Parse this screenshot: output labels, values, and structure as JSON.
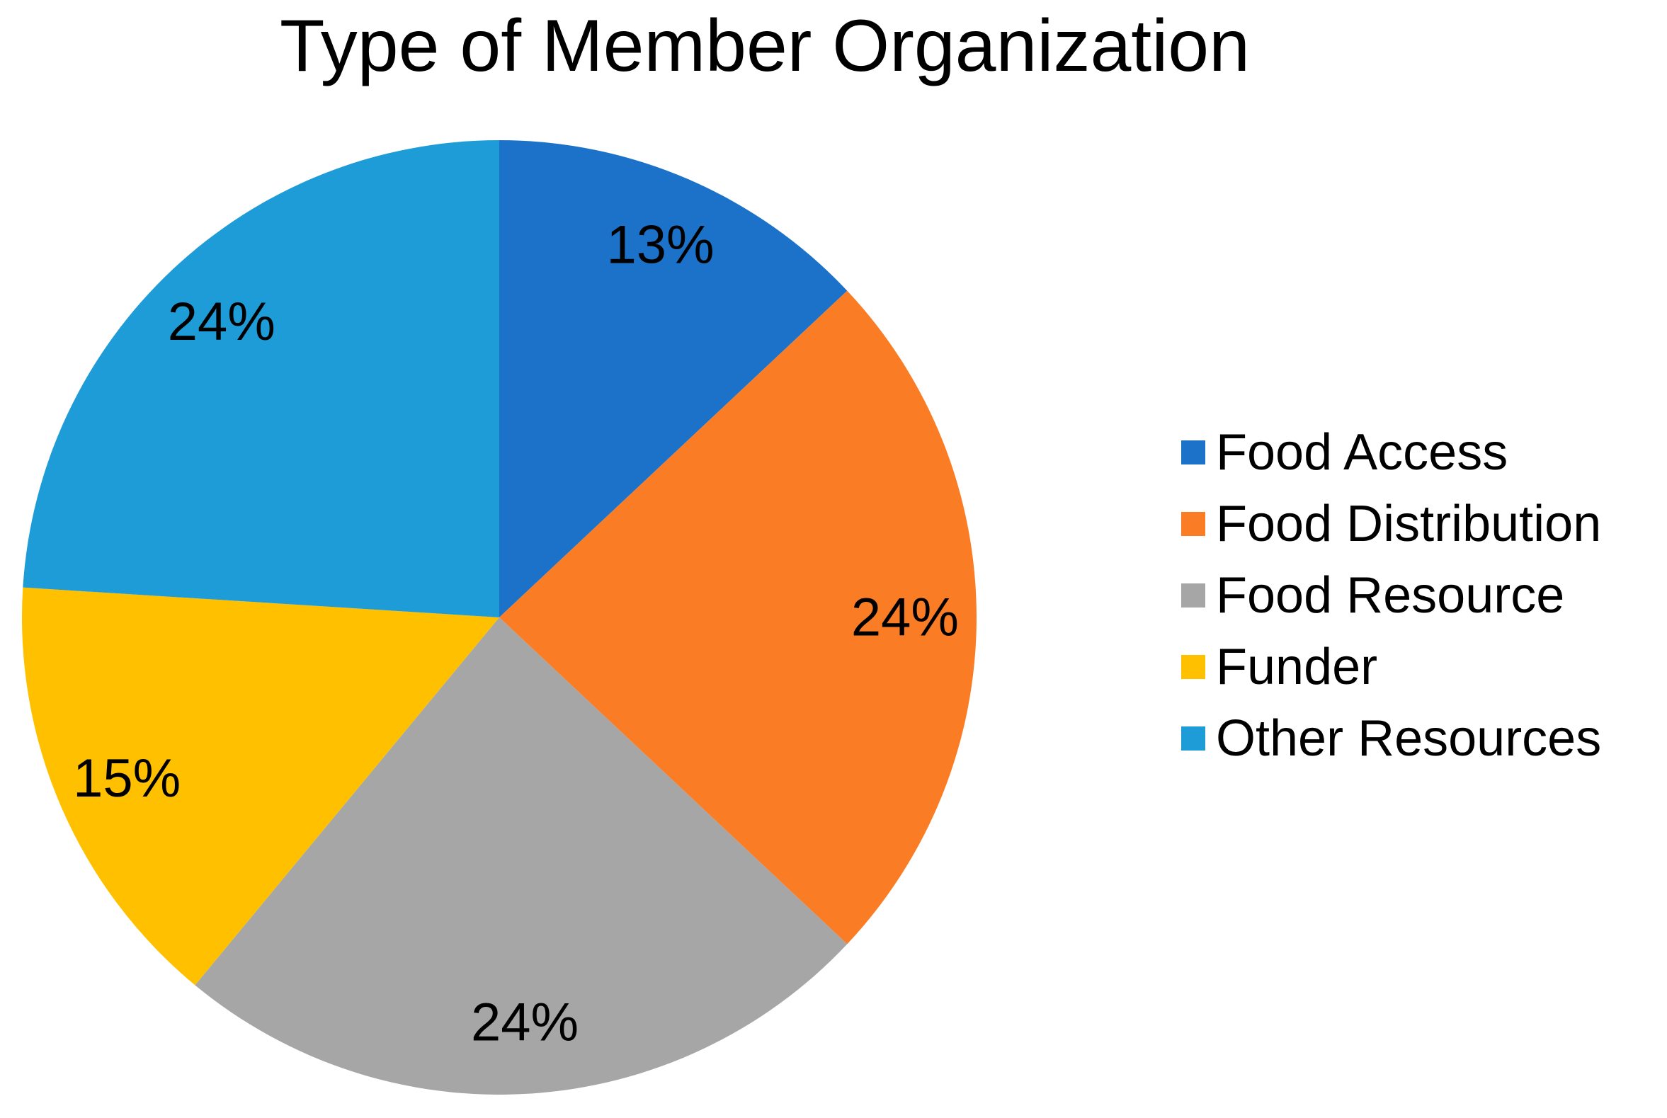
{
  "chart_data": {
    "type": "pie",
    "title": "Type of Member Organization",
    "start_angle_deg": 0,
    "direction": "clockwise",
    "label_format": "percent",
    "legend_position": "right",
    "background_color": "#ffffff",
    "text_color": "#000000",
    "slices": [
      {
        "label": "Food Access",
        "value": 13,
        "display": "13%",
        "color": "#1B72C8"
      },
      {
        "label": "Food Distribution",
        "value": 24,
        "display": "24%",
        "color": "#FA7C25"
      },
      {
        "label": "Food Resource",
        "value": 24,
        "display": "24%",
        "color": "#A6A6A6"
      },
      {
        "label": "Funder",
        "value": 15,
        "display": "15%",
        "color": "#FFC000"
      },
      {
        "label": "Other Resources",
        "value": 24,
        "display": "24%",
        "color": "#1E9CD8"
      }
    ]
  }
}
